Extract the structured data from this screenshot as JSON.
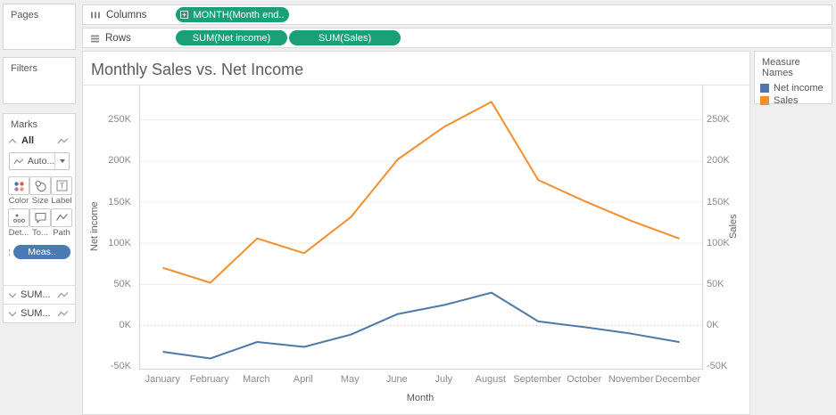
{
  "colors": {
    "pill_green": "#19a077",
    "pill_blue": "#4a7ab5",
    "series_blue": "#4e79a7",
    "series_orange": "#f28e2b"
  },
  "shelves": {
    "columns": {
      "label": "Columns",
      "pills": [
        {
          "label": "MONTH(Month end.."
        }
      ]
    },
    "rows": {
      "label": "Rows",
      "pills": [
        {
          "label": "SUM(Net income)"
        },
        {
          "label": "SUM(Sales)"
        }
      ]
    }
  },
  "panels": {
    "pages": {
      "title": "Pages"
    },
    "filters": {
      "title": "Filters"
    },
    "marks": {
      "title": "Marks",
      "card_label": "All",
      "mark_type": "Auto...",
      "buttons": [
        {
          "label": "Color"
        },
        {
          "label": "Size"
        },
        {
          "label": "Label"
        },
        {
          "label": "Det..."
        },
        {
          "label": "To..."
        },
        {
          "label": "Path"
        }
      ],
      "measure_pill": "Meas..",
      "field_rows": [
        {
          "label": "SUM..."
        },
        {
          "label": "SUM..."
        }
      ]
    }
  },
  "legend": {
    "title": "Measure Names",
    "items": [
      {
        "label": "Net income",
        "color": "#4e79a7"
      },
      {
        "label": "Sales",
        "color": "#f28e2b"
      }
    ]
  },
  "chart_data": {
    "type": "line",
    "title": "Monthly Sales vs. Net Income",
    "categories": [
      "January",
      "February",
      "March",
      "April",
      "May",
      "June",
      "July",
      "August",
      "September",
      "October",
      "November",
      "December"
    ],
    "series": [
      {
        "name": "Net income",
        "axis": "left",
        "color": "#4e79a7",
        "values": [
          -32,
          -40,
          -20,
          -26,
          -11,
          14,
          25,
          40,
          5,
          -2,
          -10,
          -20
        ]
      },
      {
        "name": "Sales",
        "axis": "right",
        "color": "#f28e2b",
        "values": [
          70,
          52,
          106,
          88,
          132,
          202,
          242,
          272,
          177,
          151,
          127,
          106
        ]
      }
    ],
    "unit": "K",
    "value_scale": "thousands",
    "xlabel": "Month",
    "ylabel_left": "Net income",
    "ylabel_right": "Sales",
    "yticks": [
      -50,
      0,
      50,
      100,
      150,
      200,
      250
    ],
    "ylim": [
      -52.5,
      293
    ],
    "legend_position": "top-right",
    "grid": "horizontal gridlines each 50K, dotted line at 0K"
  }
}
